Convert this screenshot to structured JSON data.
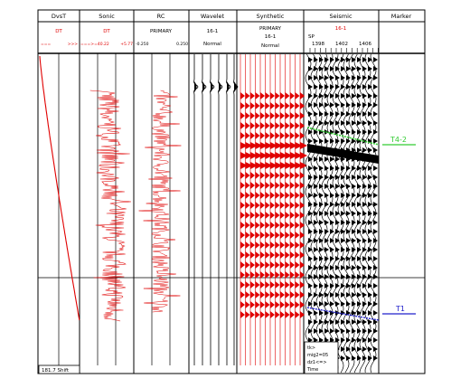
{
  "columns": [
    {
      "id": "dvat",
      "title": "DvsT",
      "sub1": "DT",
      "sub1_color": "#e00000",
      "scale_left": "===",
      "scale_right": ">>>"
    },
    {
      "id": "sonic",
      "title": "Sonic",
      "sub1": "DT",
      "sub1_color": "#e00000",
      "scale_left": "===>=40.22",
      "scale_right": "+5.77"
    },
    {
      "id": "rc",
      "title": "RC",
      "sub1": "PRIMARY",
      "sub1_color": "#000000",
      "scale_left": "-0.250",
      "scale_right": "0.250"
    },
    {
      "id": "wavelet",
      "title": "Wavelet",
      "sub1": "16-1",
      "sub2": "Normal"
    },
    {
      "id": "synthetic",
      "title": "Synthetic",
      "sub1": "PRIMARY",
      "sub2": "16-1",
      "sub3": "Normal"
    },
    {
      "id": "seismic",
      "title": "Seismic",
      "sub1": "16-1",
      "sub1_color": "#e00000",
      "sp_label": "SP",
      "sp_values": [
        "1398",
        "1402",
        "1406"
      ]
    },
    {
      "id": "marker",
      "title": "Marker"
    }
  ],
  "markers": [
    {
      "label": "T4-2",
      "color": "#33cc33"
    },
    {
      "label": "T1",
      "color": "#2222cc"
    }
  ],
  "footer": {
    "shift": "181.7 Shift",
    "notes": [
      "tk>",
      "mig2=05",
      "dz1<=>",
      "Time"
    ]
  },
  "colors": {
    "curve": "#e00000",
    "grid": "#000000",
    "synthetic_fill": "#e00000",
    "seismic_fill": "#000000",
    "t4_line": "#33cc33",
    "t1_line": "#2222cc"
  }
}
